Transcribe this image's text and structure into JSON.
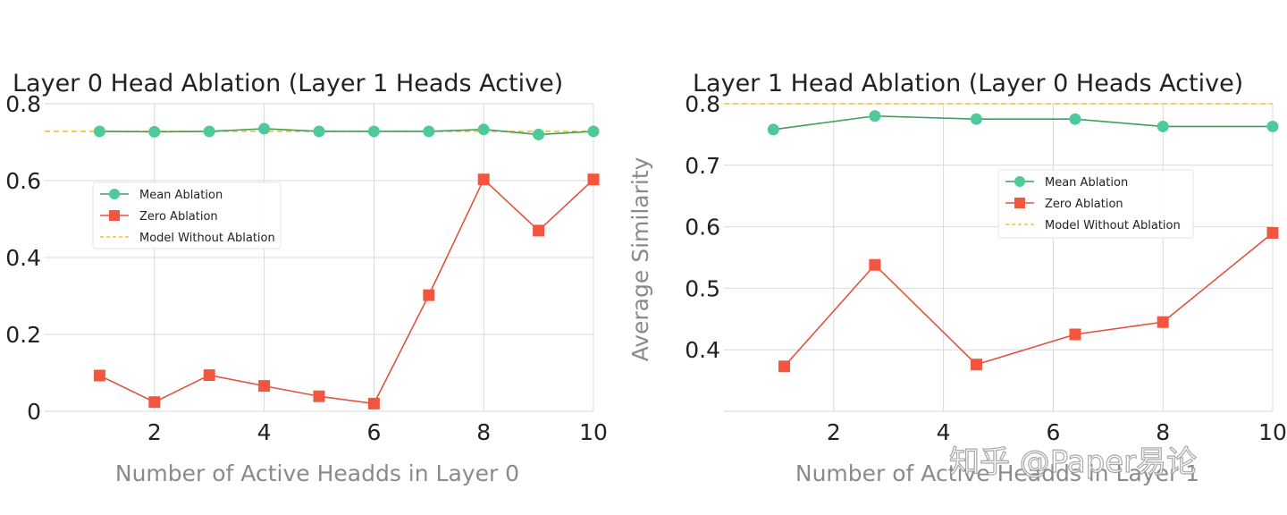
{
  "chart_data": [
    {
      "type": "line",
      "title": "Layer 0 Head Ablation (Layer 1 Heads Active)",
      "xlabel": "Number of Active Headds in Layer 0",
      "ylabel": "",
      "xlim": [
        0,
        10
      ],
      "ylim": [
        0,
        0.8
      ],
      "xticks": [
        2,
        4,
        6,
        8,
        10
      ],
      "yticks": [
        0,
        0.2,
        0.4,
        0.6,
        0.8
      ],
      "ytick_labels": [
        "0",
        "0.2",
        "0.4",
        "0.6",
        "0.8"
      ],
      "grid": true,
      "legend_position": "upper-left",
      "series": [
        {
          "name": "Mean Ablation",
          "color": "#4ec99a",
          "line_color": "#3f9e5e",
          "marker": "circle",
          "x": [
            1,
            2,
            3,
            4,
            5,
            6,
            7,
            8,
            9,
            10
          ],
          "values": [
            0.728,
            0.727,
            0.728,
            0.735,
            0.728,
            0.728,
            0.728,
            0.733,
            0.72,
            0.728
          ]
        },
        {
          "name": "Zero Ablation",
          "color": "#f4553f",
          "line_color": "#e2523e",
          "marker": "square",
          "x": [
            1,
            2,
            3,
            4,
            5,
            6,
            7,
            8,
            9,
            10
          ],
          "values": [
            0.093,
            0.024,
            0.094,
            0.066,
            0.039,
            0.02,
            0.302,
            0.603,
            0.47,
            0.603
          ]
        }
      ],
      "reference_line": {
        "name": "Model Without Ablation",
        "value": 0.728,
        "color": "#f2c12e",
        "style": "dashed"
      }
    },
    {
      "type": "line",
      "title": "Layer 1 Head Ablation (Layer 0 Heads Active)",
      "xlabel": "Number of Active Headds in Layer 1",
      "ylabel": "Average Similarity",
      "xlim": [
        0,
        10
      ],
      "ylim": [
        0.3,
        0.8
      ],
      "xticks": [
        2,
        4,
        6,
        8,
        10
      ],
      "yticks": [
        0.4,
        0.5,
        0.6,
        0.7,
        0.8
      ],
      "ytick_labels": [
        "0.4",
        "0.5",
        "0.6",
        "0.7",
        "0.8"
      ],
      "grid": true,
      "legend_position": "center-right",
      "series": [
        {
          "name": "Mean Ablation",
          "color": "#4ec99a",
          "line_color": "#3f9e5e",
          "marker": "circle",
          "x": [
            0.9,
            2.75,
            4.6,
            6.4,
            8.0,
            10.0
          ],
          "values": [
            0.758,
            0.78,
            0.775,
            0.775,
            0.763,
            0.763
          ]
        },
        {
          "name": "Zero Ablation",
          "color": "#f4553f",
          "line_color": "#e2523e",
          "marker": "square",
          "x": [
            1.1,
            2.75,
            4.6,
            6.4,
            8.0,
            10.0
          ],
          "values": [
            0.373,
            0.538,
            0.376,
            0.425,
            0.445,
            0.59
          ]
        }
      ],
      "reference_line": {
        "name": "Model Without Ablation",
        "value": 0.8,
        "color": "#f2c12e",
        "style": "dashed"
      }
    }
  ],
  "watermark": "知乎 @Paper易论"
}
